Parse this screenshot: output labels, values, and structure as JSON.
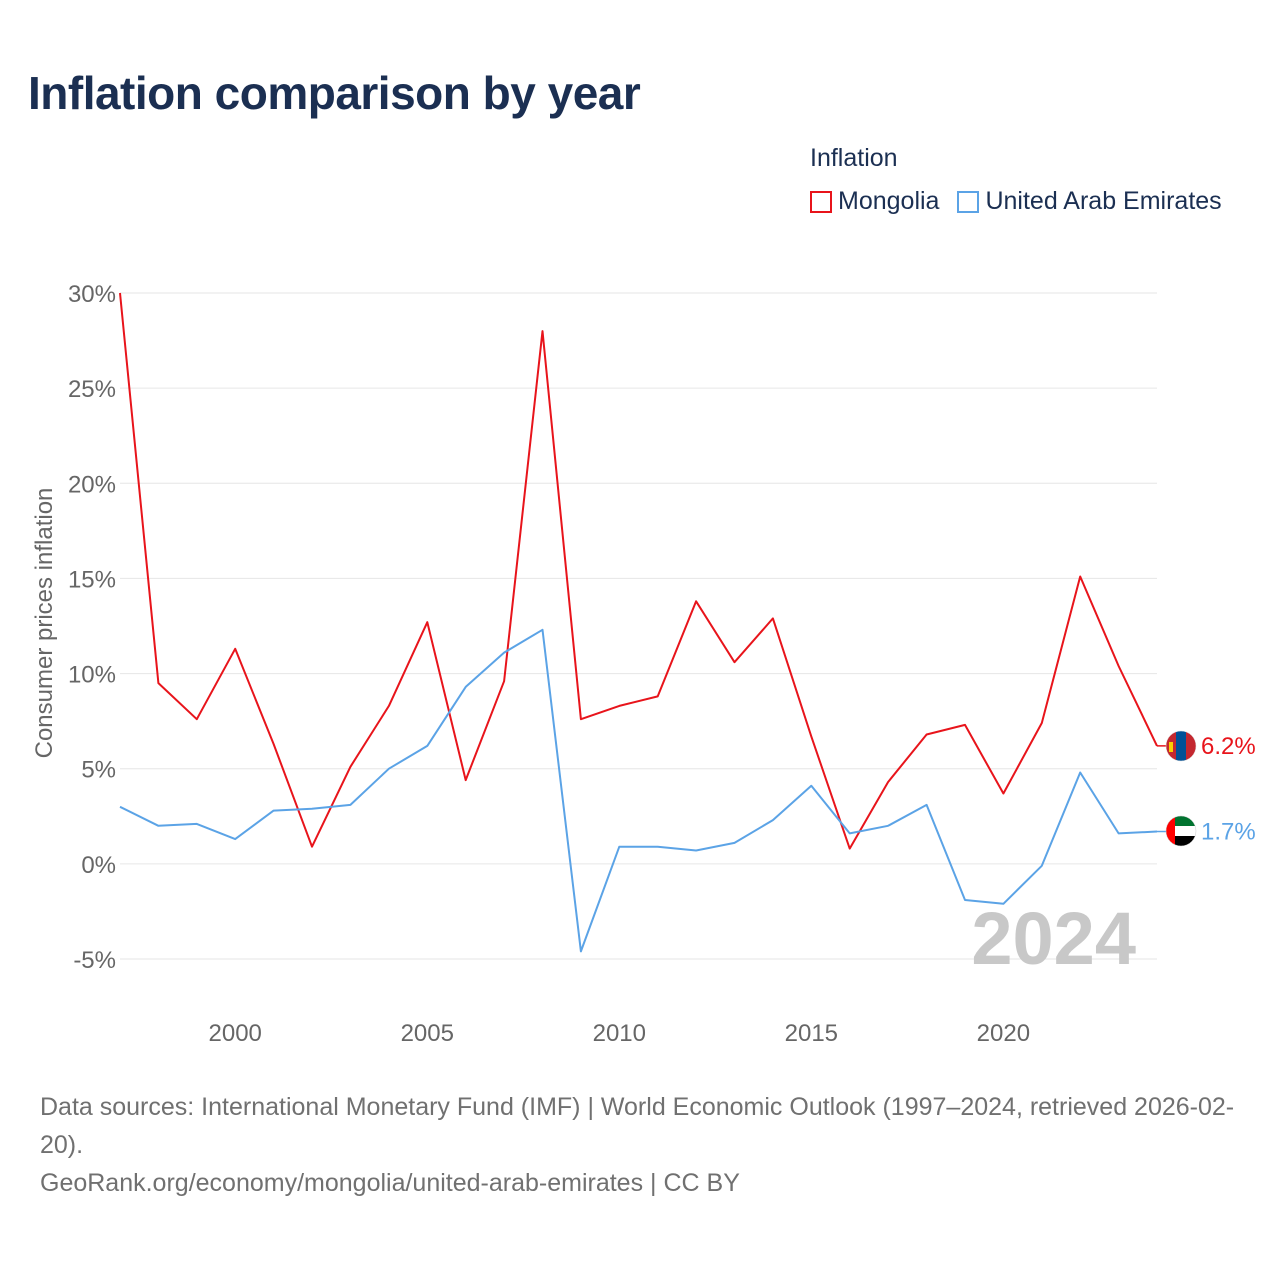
{
  "title": "Inflation comparison by year",
  "legend": {
    "title": "Inflation",
    "items": [
      {
        "label": "Mongolia",
        "color": "#e8141b"
      },
      {
        "label": "United Arab Emirates",
        "color": "#5ba3e6"
      }
    ]
  },
  "footer": {
    "sources": "Data sources: International Monetary Fund (IMF) | World Economic Outlook (1997–2024, retrieved 2026-02-20).",
    "credit": "GeoRank.org/economy/mongolia/united-arab-emirates | CC BY"
  },
  "chart_data": {
    "type": "line",
    "title": "Inflation comparison by year",
    "xlabel": "",
    "ylabel": "Consumer prices inflation",
    "xlim": [
      1997,
      2024
    ],
    "ylim": [
      -5,
      30
    ],
    "grid": true,
    "legend_position": "top-right",
    "x_ticks": [
      2000,
      2005,
      2010,
      2015,
      2020
    ],
    "x_tick_labels": [
      "2000",
      "2005",
      "2010",
      "2015",
      "2020"
    ],
    "y_ticks": [
      -5,
      0,
      5,
      10,
      15,
      20,
      25,
      30
    ],
    "y_tick_labels": [
      "-5%",
      "0%",
      "5%",
      "10%",
      "15%",
      "20%",
      "25%",
      "30%"
    ],
    "watermark_year": "2024",
    "x": [
      1997,
      1998,
      1999,
      2000,
      2001,
      2002,
      2003,
      2004,
      2005,
      2006,
      2007,
      2008,
      2009,
      2010,
      2011,
      2012,
      2013,
      2014,
      2015,
      2016,
      2017,
      2018,
      2019,
      2020,
      2021,
      2022,
      2023,
      2024
    ],
    "series": [
      {
        "name": "Mongolia",
        "color": "#e8141b",
        "end_label": "6.2%",
        "flag": "mongolia-flag",
        "values": [
          30.0,
          9.5,
          7.6,
          11.3,
          6.3,
          0.9,
          5.1,
          8.3,
          12.7,
          4.4,
          9.6,
          28.0,
          7.6,
          8.3,
          8.8,
          13.8,
          10.6,
          12.9,
          6.7,
          0.8,
          4.3,
          6.8,
          7.3,
          3.7,
          7.4,
          15.1,
          10.4,
          6.2
        ]
      },
      {
        "name": "United Arab Emirates",
        "color": "#5ba3e6",
        "end_label": "1.7%",
        "flag": "uae-flag",
        "values": [
          3.0,
          2.0,
          2.1,
          1.3,
          2.8,
          2.9,
          3.1,
          5.0,
          6.2,
          9.3,
          11.1,
          12.3,
          -4.6,
          0.9,
          0.9,
          0.7,
          1.1,
          2.3,
          4.1,
          1.6,
          2.0,
          3.1,
          -1.9,
          -2.1,
          -0.1,
          4.8,
          1.6,
          1.7
        ]
      }
    ]
  }
}
